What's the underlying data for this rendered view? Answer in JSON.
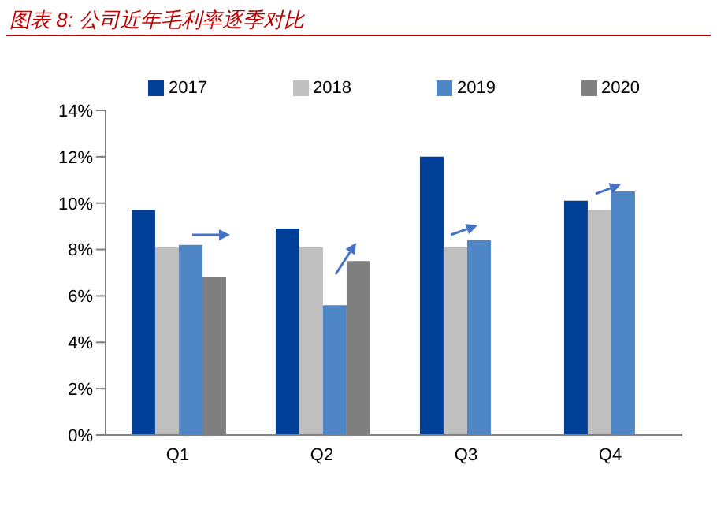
{
  "chart_data": {
    "type": "bar",
    "title": "图表 8: 公司近年毛利率逐季对比",
    "categories": [
      "Q1",
      "Q2",
      "Q3",
      "Q4"
    ],
    "series": [
      {
        "name": "2017",
        "color": "#003f98",
        "values": [
          9.7,
          8.9,
          12.0,
          10.1
        ]
      },
      {
        "name": "2018",
        "color": "#bfbfbf",
        "values": [
          8.1,
          8.1,
          8.1,
          9.7
        ]
      },
      {
        "name": "2019",
        "color": "#4f86c6",
        "values": [
          8.2,
          5.6,
          8.4,
          10.5
        ]
      },
      {
        "name": "2020",
        "color": "#7f7f7f",
        "values": [
          6.8,
          7.5,
          null,
          null
        ]
      }
    ],
    "ylim": [
      0,
      14
    ],
    "yticks": [
      {
        "value": 0,
        "label": "0%"
      },
      {
        "value": 2,
        "label": "2%"
      },
      {
        "value": 4,
        "label": "4%"
      },
      {
        "value": 6,
        "label": "6%"
      },
      {
        "value": 8,
        "label": "8%"
      },
      {
        "value": 10,
        "label": "10%"
      },
      {
        "value": 12,
        "label": "12%"
      },
      {
        "value": 14,
        "label": "14%"
      }
    ],
    "grid": false,
    "legend": "top"
  }
}
